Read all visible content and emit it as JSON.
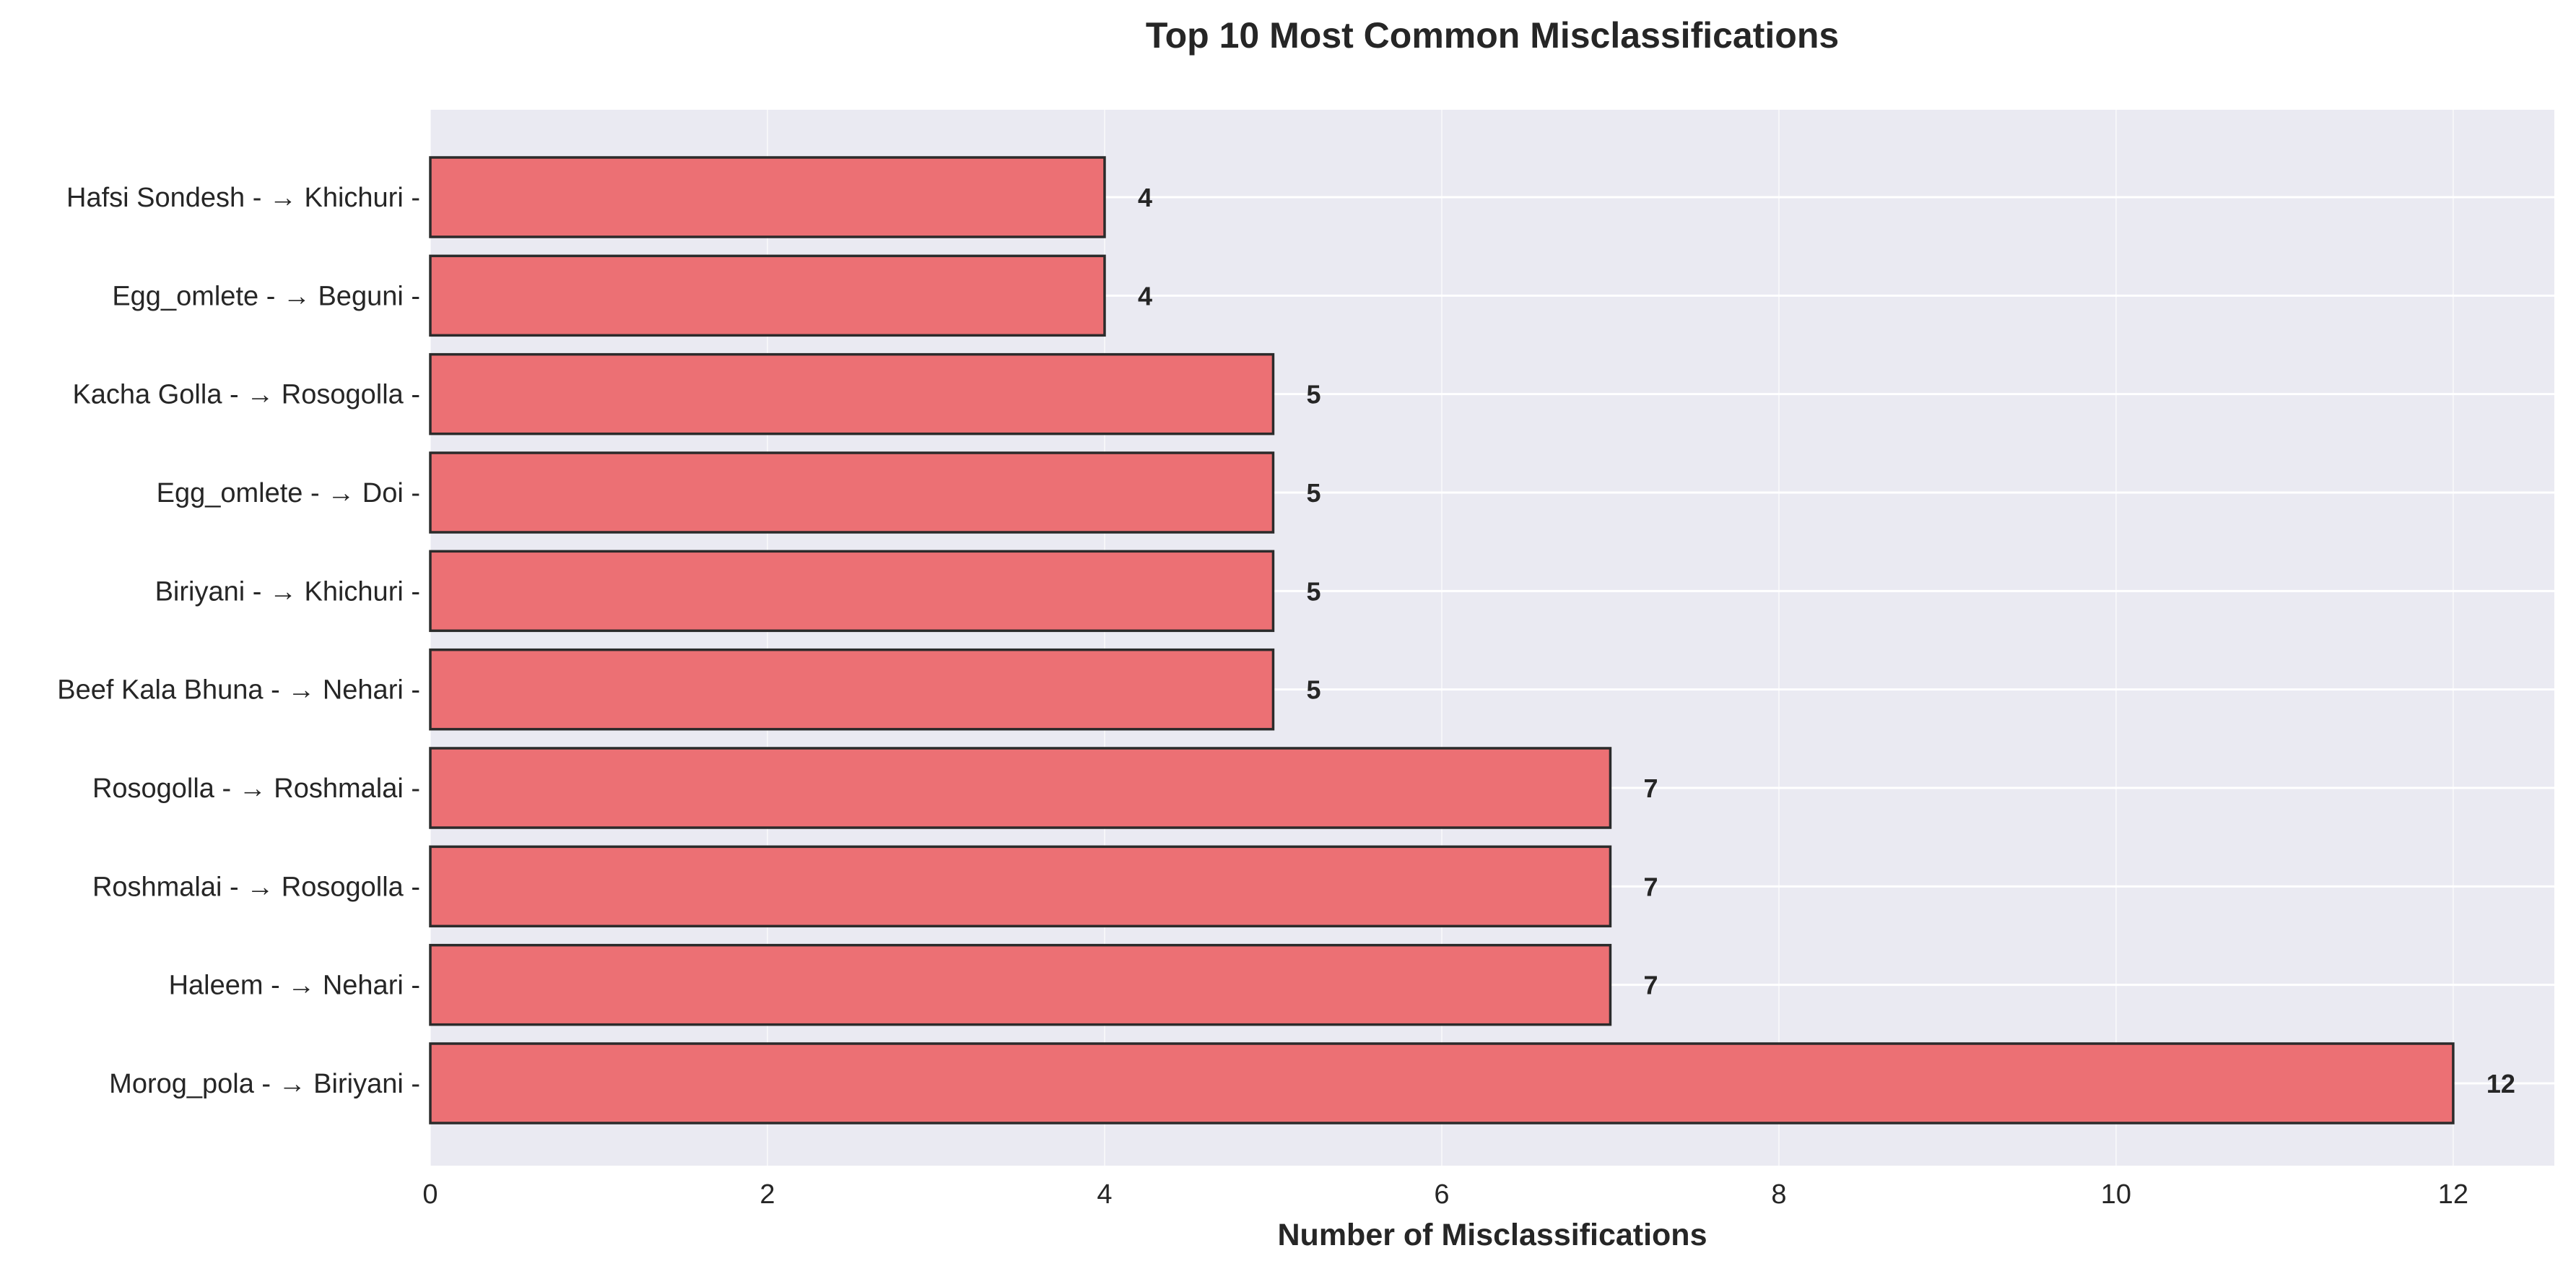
{
  "chart_data": {
    "type": "bar",
    "orientation": "horizontal",
    "title": "Top 10 Most Common Misclassifications",
    "xlabel": "Number of Misclassifications",
    "ylabel": "",
    "categories": [
      "Morog_pola - → Biriyani -",
      "Haleem - → Nehari -",
      "Roshmalai - → Rosogolla -",
      "Rosogolla - → Roshmalai -",
      "Beef Kala Bhuna - → Nehari -",
      "Biriyani - → Khichuri -",
      "Egg_omlete - → Doi -",
      "Kacha Golla - → Rosogolla -",
      "Egg_omlete - → Beguni -",
      "Hafsi Sondesh - → Khichuri -"
    ],
    "values": [
      12,
      7,
      7,
      7,
      5,
      5,
      5,
      5,
      4,
      4
    ],
    "data_labels": [
      "12",
      "7",
      "7",
      "7",
      "5",
      "5",
      "5",
      "5",
      "4",
      "4"
    ],
    "xlim": [
      0,
      12.6
    ],
    "xticks": [
      0,
      2,
      4,
      6,
      8,
      10,
      12
    ],
    "xtick_labels": [
      "0",
      "2",
      "4",
      "6",
      "8",
      "10",
      "12"
    ],
    "grid": true,
    "colors": {
      "bar_fill": "#ec7074",
      "bar_edge": "#2b2b2b",
      "plot_background": "#eaeaf2",
      "grid": "#ffffff",
      "text": "#262626"
    }
  }
}
